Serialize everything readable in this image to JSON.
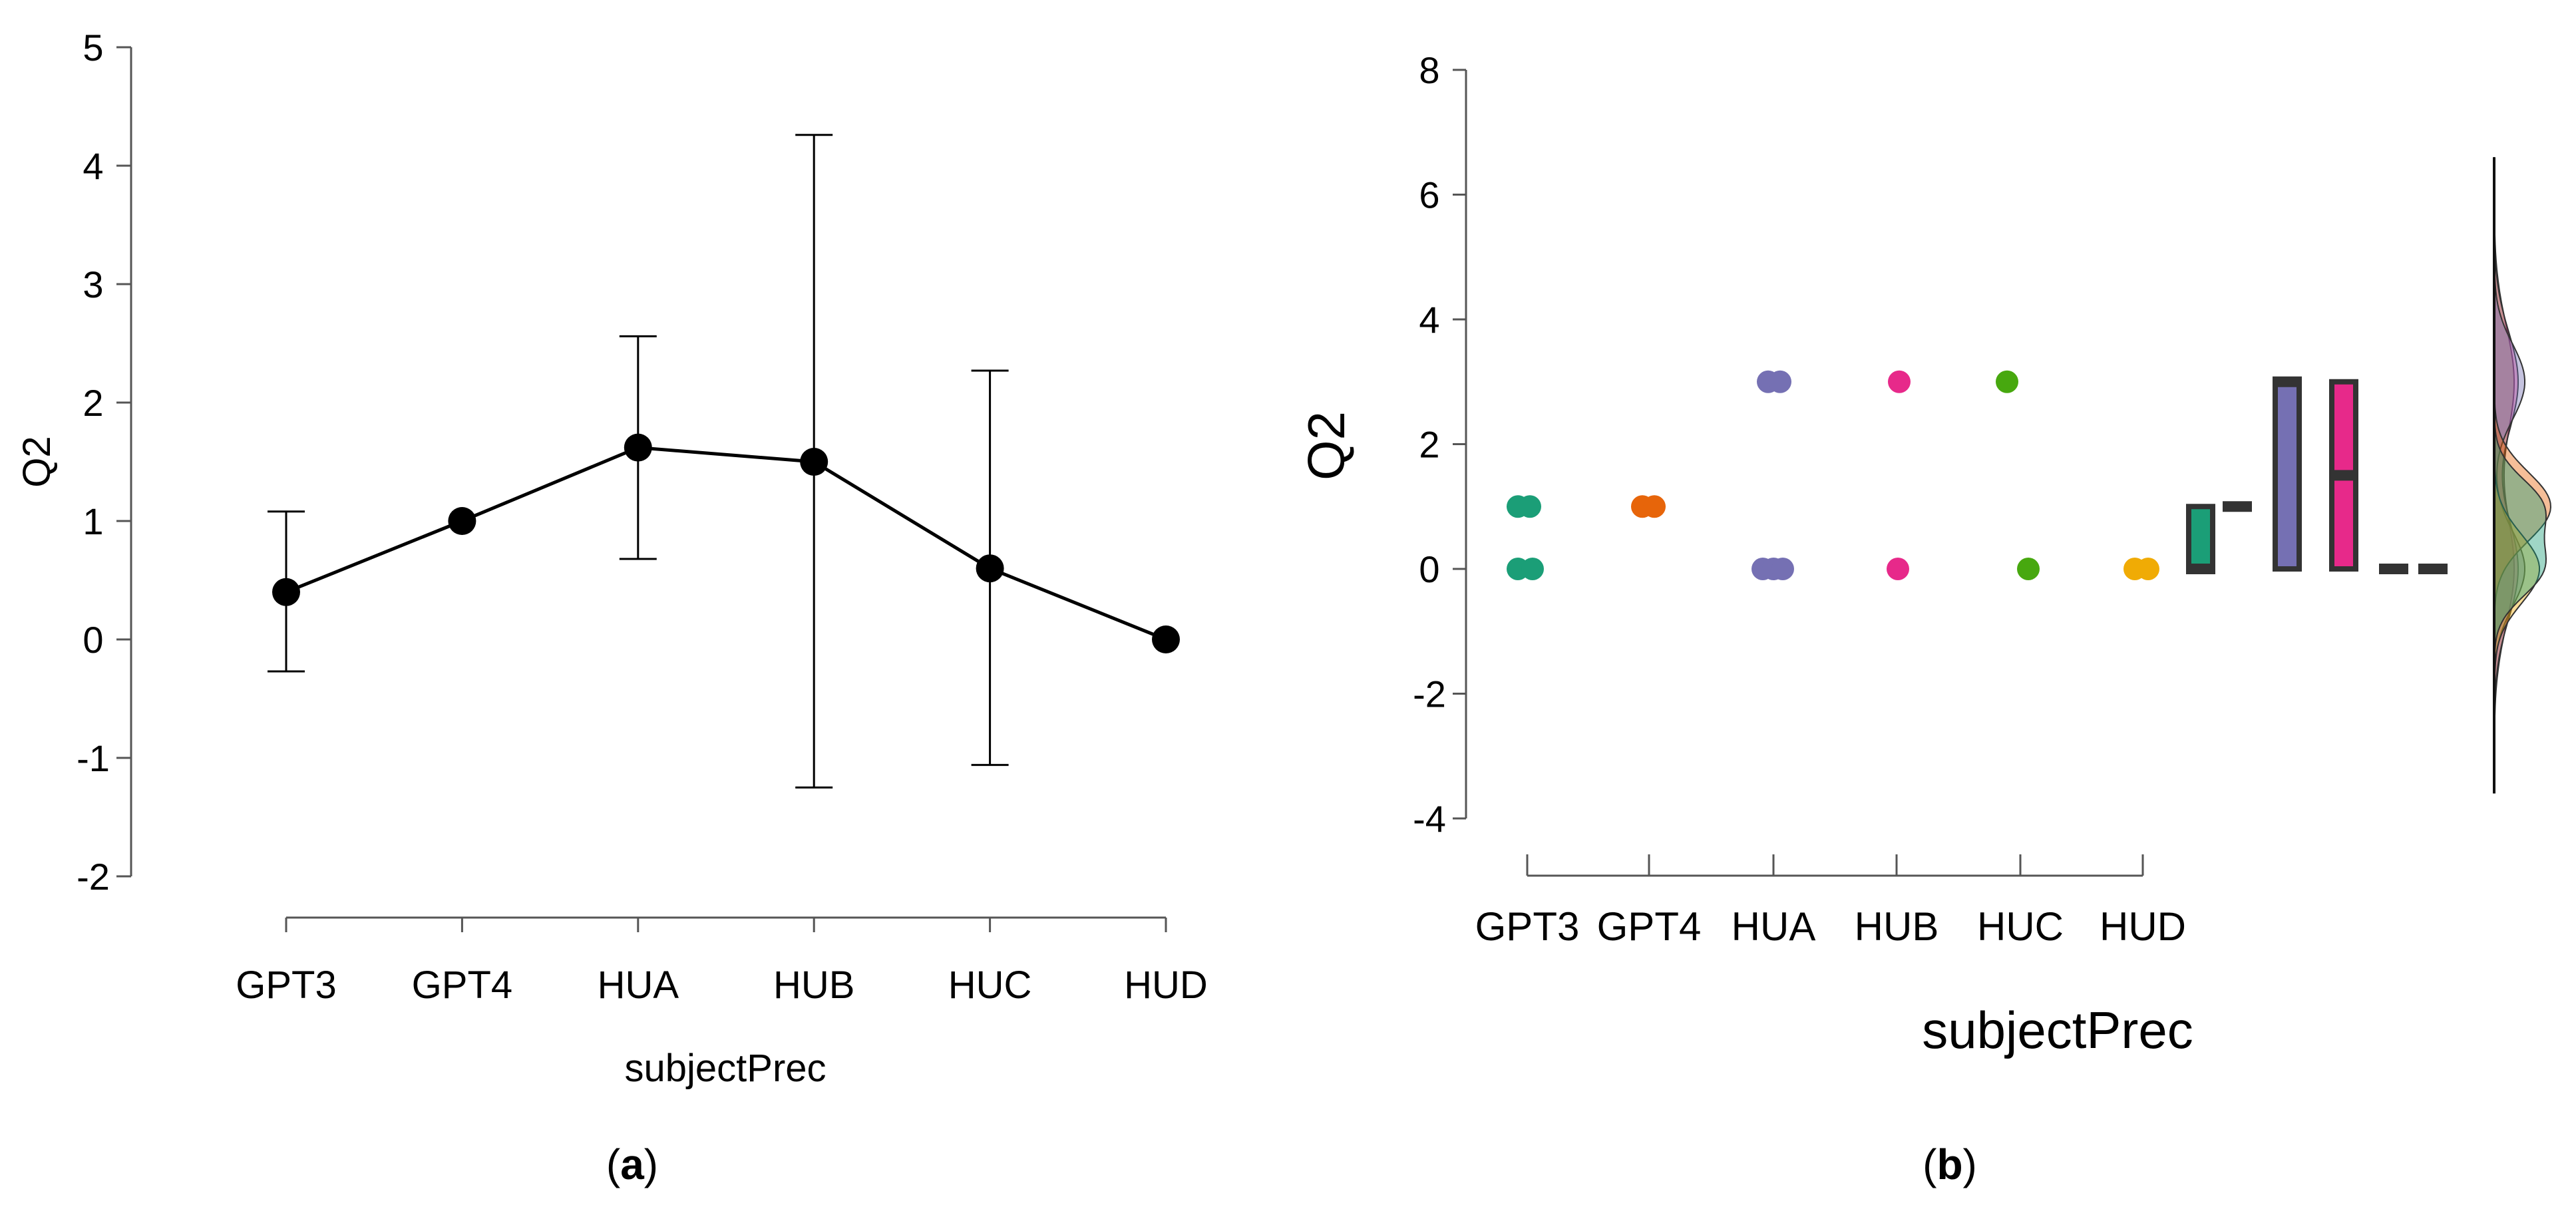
{
  "chart_data": [
    {
      "type": "line",
      "panel_label": "a",
      "xlabel": "subjectPrec",
      "ylabel": "Q2",
      "categories": [
        "GPT3",
        "GPT4",
        "HUA",
        "HUB",
        "HUC",
        "HUD"
      ],
      "yticks": [
        "-2",
        "-1",
        "0",
        "1",
        "2",
        "3",
        "4",
        "5"
      ],
      "ylim": [
        -2,
        5
      ],
      "series": [
        {
          "values": [
            0.4,
            1.0,
            1.62,
            1.5,
            0.6,
            0.0
          ],
          "error_lower": [
            -0.27,
            1.0,
            0.68,
            -1.25,
            -1.06,
            0.0
          ],
          "error_upper": [
            1.08,
            1.0,
            2.56,
            4.26,
            2.27,
            0.0
          ]
        }
      ],
      "grid": false
    },
    {
      "type": "raincloud",
      "panel_label": "b",
      "xlabel": "subjectPrec",
      "ylabel": "Q2",
      "categories": [
        "GPT3",
        "GPT4",
        "HUA",
        "HUB",
        "HUC",
        "HUD"
      ],
      "yticks": [
        "-4",
        "-2",
        "0",
        "2",
        "4",
        "6",
        "8"
      ],
      "ylim": [
        -4,
        8
      ],
      "points": [
        {
          "group": "GPT3",
          "values": [
            1,
            1,
            0,
            0
          ]
        },
        {
          "group": "GPT4",
          "values": [
            1,
            1
          ]
        },
        {
          "group": "HUA",
          "values": [
            3,
            3,
            0,
            0,
            0
          ]
        },
        {
          "group": "HUB",
          "values": [
            3,
            0
          ]
        },
        {
          "group": "HUC",
          "values": [
            3,
            0
          ]
        },
        {
          "group": "HUD",
          "values": [
            0,
            0
          ]
        }
      ],
      "boxplots": [
        {
          "group": "GPT3",
          "q1": 0,
          "median": 0,
          "q3": 1
        },
        {
          "group": "GPT4",
          "q1": 1,
          "median": 1,
          "q3": 1
        },
        {
          "group": "HUA",
          "q1": 0,
          "median": 3,
          "q3": 3
        },
        {
          "group": "HUB",
          "q1": 0,
          "median": 1.5,
          "q3": 3
        },
        {
          "group": "HUC",
          "q1": 0,
          "median": 0,
          "q3": 0
        },
        {
          "group": "HUD",
          "q1": 0,
          "median": 0,
          "q3": 0
        }
      ],
      "colors": {
        "GPT3": "#1b9e77",
        "GPT4": "#e7650a",
        "HUA": "#7570b3",
        "HUB": "#e7298a",
        "HUC": "#47a80f",
        "HUD": "#f0ab05"
      },
      "density_range": [
        -3.6,
        6.6
      ],
      "grid": false
    }
  ]
}
